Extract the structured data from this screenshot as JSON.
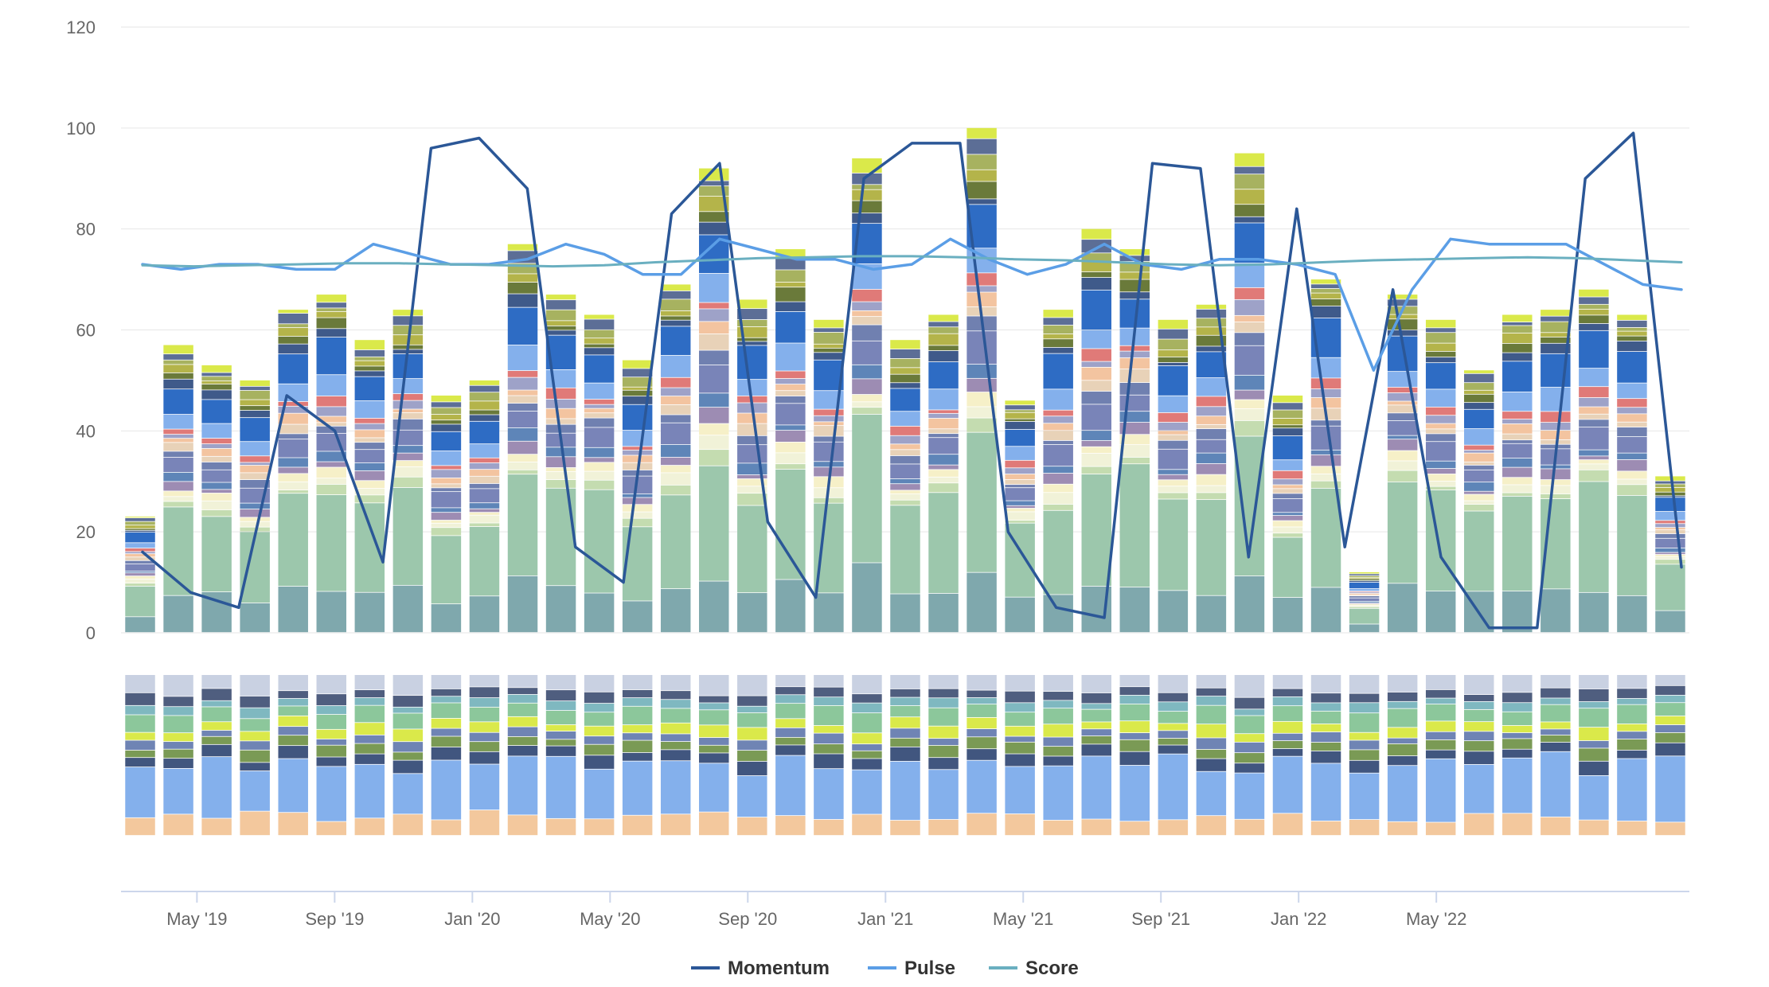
{
  "chart_data": {
    "type": "bar",
    "stacked": true,
    "title": "",
    "xlabel": "",
    "ylabel": "",
    "ylim": [
      0,
      120
    ],
    "yticks": [
      0,
      20,
      40,
      60,
      80,
      100,
      120
    ],
    "grid": true,
    "x_start": "2019-03",
    "months": [
      "Mar '19",
      "Apr '19",
      "May '19",
      "Jun '19",
      "Jul '19",
      "Aug '19",
      "Sep '19",
      "Oct '19",
      "Nov '19",
      "Dec '19",
      "Jan '20",
      "Feb '20",
      "Mar '20",
      "Apr '20",
      "May '20",
      "Jun '20",
      "Jul '20",
      "Aug '20",
      "Sep '20",
      "Oct '20",
      "Nov '20",
      "Dec '20",
      "Jan '21",
      "Feb '21",
      "Mar '21",
      "Apr '21",
      "May '21",
      "Jun '21",
      "Jul '21",
      "Aug '21",
      "Sep '21",
      "Oct '21",
      "Nov '21",
      "Dec '21",
      "Jan '22",
      "Feb '22",
      "Mar '22",
      "Apr '22",
      "May '22",
      "Jun '22",
      "Jul '22",
      "Aug '22"
    ],
    "xticks": [
      {
        "label": "May '19",
        "month_index": 2
      },
      {
        "label": "Sep '19",
        "month_index": 6
      },
      {
        "label": "Jan '20",
        "month_index": 10
      },
      {
        "label": "May '20",
        "month_index": 14
      },
      {
        "label": "Sep '20",
        "month_index": 18
      },
      {
        "label": "Jan '21",
        "month_index": 22
      },
      {
        "label": "May '21",
        "month_index": 26
      },
      {
        "label": "Sep '21",
        "month_index": 30
      },
      {
        "label": "Jan '22",
        "month_index": 34
      },
      {
        "label": "May '22",
        "month_index": 38
      }
    ],
    "bar_totals": [
      23,
      57,
      53,
      50,
      64,
      67,
      58,
      64,
      47,
      50,
      77,
      67,
      63,
      54,
      69,
      92,
      66,
      76,
      62,
      94,
      58,
      63,
      100,
      46,
      64,
      80,
      76,
      62,
      65,
      95,
      47,
      70,
      12,
      67,
      62,
      52,
      63,
      64,
      68,
      63,
      31
    ],
    "stack_colors": [
      "#7fa8ad",
      "#9cc7ac",
      "#c4dcb0",
      "#f1f2d8",
      "#f6f0c8",
      "#9d8cb3",
      "#5e85b8",
      "#7984b8",
      "#7080b0",
      "#e8d2b8",
      "#f3c4a0",
      "#9ea2c8",
      "#e07a78",
      "#84b0ec",
      "#2e6cc4",
      "#3f5a8a",
      "#6a7a3a",
      "#b4b44a",
      "#a7b260",
      "#5c6e96",
      "#dae94a"
    ],
    "lower_panel": {
      "bands": [
        {
          "color": "#f3c89d",
          "share": 0.12
        },
        {
          "color": "#84b0ec",
          "share": 0.34
        },
        {
          "color": "#41567f",
          "share": 0.07
        },
        {
          "color": "#7a9a55",
          "share": 0.06
        },
        {
          "color": "#6f84b4",
          "share": 0.05
        },
        {
          "color": "#dae94a",
          "share": 0.06
        },
        {
          "color": "#8cc79b",
          "share": 0.09
        },
        {
          "color": "#7fb8c0",
          "share": 0.05
        },
        {
          "color": "#4f5e7f",
          "share": 0.06
        },
        {
          "color": "#c9d1e2",
          "share": 0.1
        }
      ]
    },
    "series": [
      {
        "name": "Momentum",
        "type": "line",
        "color": "#2b5797",
        "values": [
          16,
          8,
          5,
          47,
          40,
          14,
          96,
          98,
          88,
          17,
          10,
          83,
          93,
          22,
          7,
          90,
          97,
          97,
          20,
          5,
          3,
          93,
          92,
          15,
          84,
          17,
          68,
          15,
          1,
          1,
          90,
          99,
          13
        ]
      },
      {
        "name": "Pulse",
        "type": "line",
        "color": "#5b9ee6",
        "values": [
          73,
          72,
          73,
          73,
          72,
          72,
          77,
          75,
          73,
          73,
          74,
          77,
          75,
          71,
          71,
          78,
          76,
          74,
          74,
          72,
          73,
          78,
          74,
          71,
          73,
          77,
          73,
          72,
          74,
          74,
          73,
          71,
          52,
          68,
          78,
          77,
          77,
          77,
          73,
          69,
          68
        ]
      },
      {
        "name": "Score",
        "type": "line",
        "color": "#6aafc0",
        "values": [
          72.8,
          72.6,
          72.8,
          73.0,
          73.2,
          73.2,
          73.0,
          72.8,
          72.6,
          72.8,
          73.4,
          73.8,
          74.2,
          74.4,
          74.6,
          74.6,
          74.4,
          74.0,
          73.8,
          73.4,
          73.0,
          72.8,
          73.0,
          73.4,
          73.8,
          74.0,
          74.2,
          74.4,
          74.2,
          73.8,
          73.4
        ]
      }
    ],
    "legend": {
      "position": "bottom-center",
      "items": [
        {
          "label": "Momentum",
          "color": "#2b5797"
        },
        {
          "label": "Pulse",
          "color": "#5b9ee6"
        },
        {
          "label": "Score",
          "color": "#6aafc0"
        }
      ]
    }
  }
}
